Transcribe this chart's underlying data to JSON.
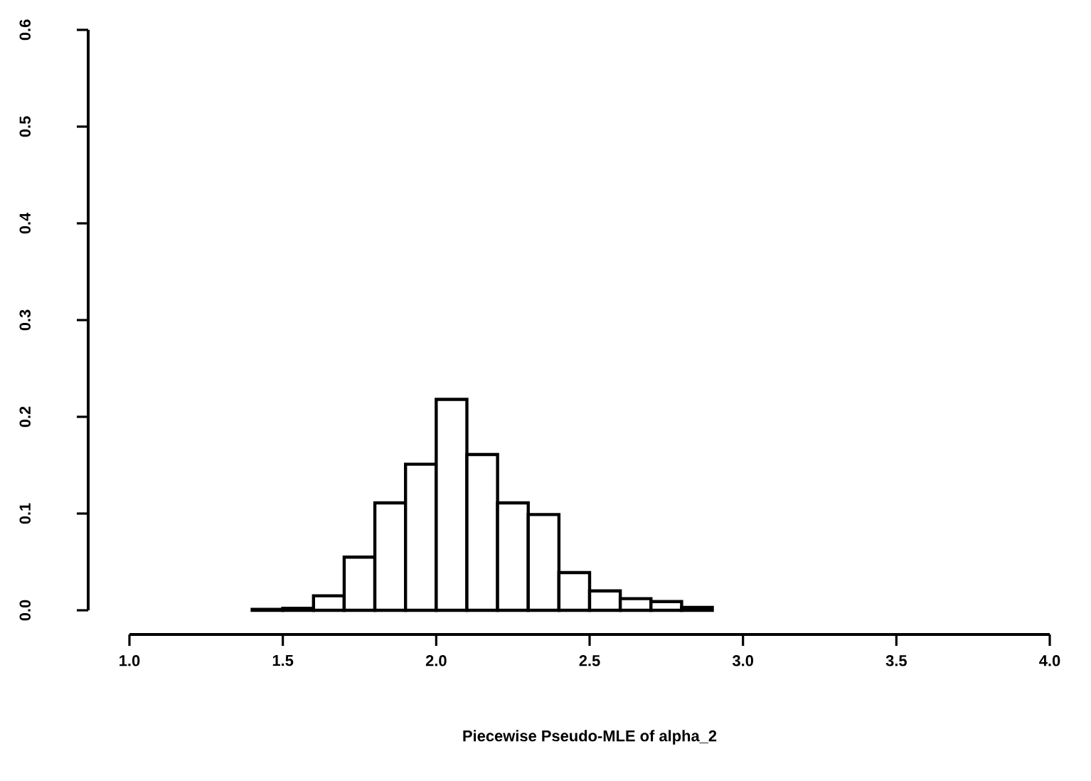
{
  "chart_data": {
    "type": "histogram",
    "xlabel": "Piecewise Pseudo-MLE of alpha_2",
    "bins": [
      1.4,
      1.5,
      1.6,
      1.7,
      1.8,
      1.9,
      2.0,
      2.1,
      2.2,
      2.3,
      2.4,
      2.5,
      2.6,
      2.7,
      2.8,
      2.9
    ],
    "values": [
      0.001,
      0.002,
      0.015,
      0.055,
      0.111,
      0.151,
      0.218,
      0.161,
      0.111,
      0.099,
      0.039,
      0.02,
      0.012,
      0.009,
      0.003
    ],
    "color": "#ffffff",
    "xlim": [
      1.0,
      4.0
    ],
    "ylim": [
      0.0,
      0.6
    ],
    "xticks": [
      {
        "value": 1.0,
        "label": "1.0"
      },
      {
        "value": 1.5,
        "label": "1.5"
      },
      {
        "value": 2.0,
        "label": "2.0"
      },
      {
        "value": 2.5,
        "label": "2.5"
      },
      {
        "value": 3.0,
        "label": "3.0"
      },
      {
        "value": 3.5,
        "label": "3.5"
      },
      {
        "value": 4.0,
        "label": "4.0"
      }
    ],
    "yticks": [
      {
        "value": 0.0,
        "label": "0.0"
      },
      {
        "value": 0.1,
        "label": "0.1"
      },
      {
        "value": 0.2,
        "label": "0.2"
      },
      {
        "value": 0.3,
        "label": "0.3"
      },
      {
        "value": 0.4,
        "label": "0.4"
      },
      {
        "value": 0.5,
        "label": "0.5"
      },
      {
        "value": 0.6,
        "label": "0.6"
      }
    ],
    "grid": false
  }
}
